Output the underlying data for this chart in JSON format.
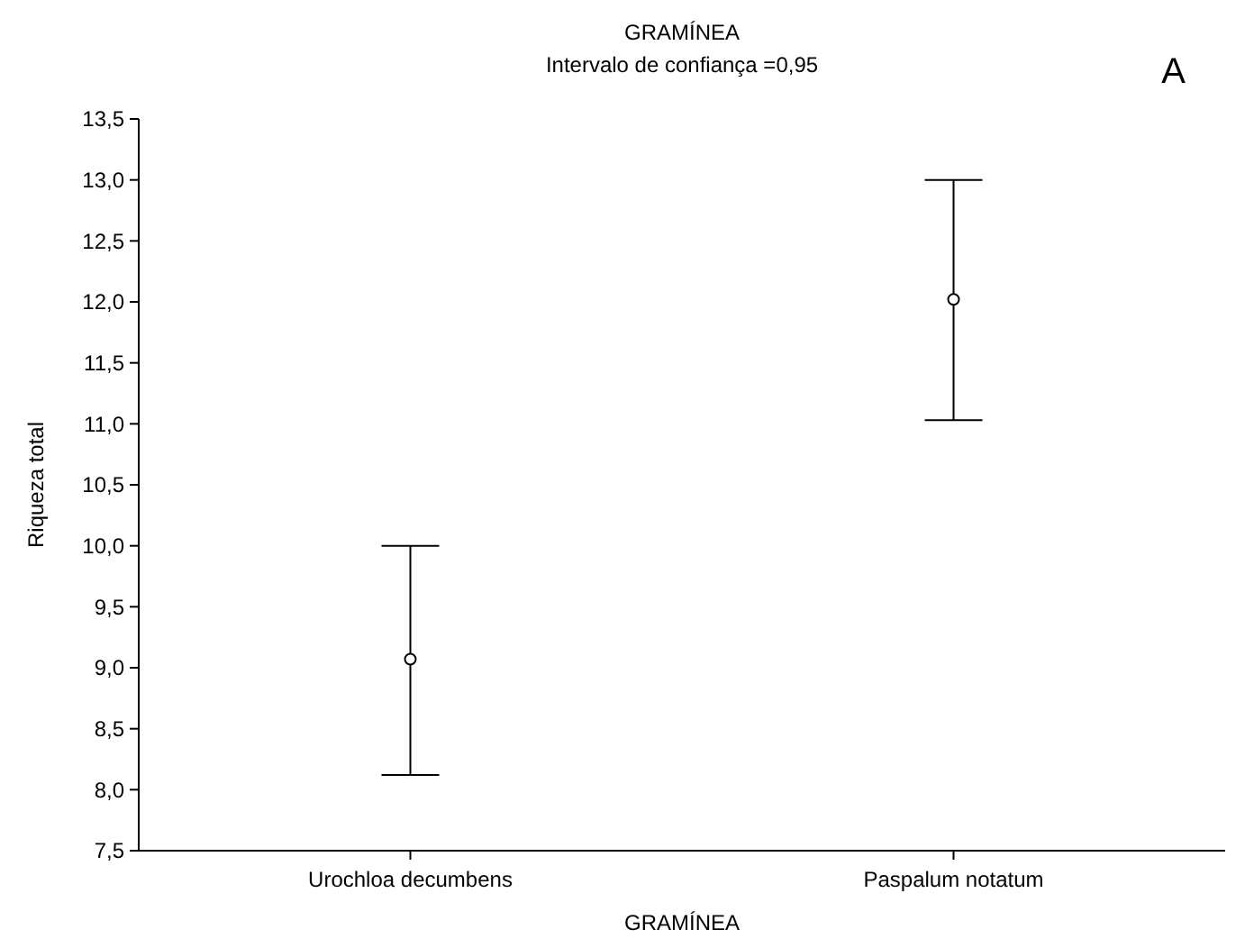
{
  "chart_data": {
    "type": "scatter",
    "title": "GRAMÍNEA",
    "subtitle": "Intervalo de confiança =0,95",
    "xlabel": "GRAMÍNEA",
    "ylabel": "Riqueza total",
    "categories": [
      "Urochloa decumbens",
      "Paspalum notatum"
    ],
    "series": [
      {
        "color": "#000000",
        "values": [
          9.07,
          12.02
        ],
        "errors": [
          [
            8.12,
            10.0
          ],
          [
            11.03,
            13.0
          ]
        ]
      }
    ],
    "ylim": [
      7.5,
      13.5
    ],
    "yticks": [
      {
        "value": 7.5,
        "label": "7,5"
      },
      {
        "value": 8,
        "label": "8,0"
      },
      {
        "value": 8.5,
        "label": "8,5"
      },
      {
        "value": 9,
        "label": "9,0"
      },
      {
        "value": 9.5,
        "label": "9,5"
      },
      {
        "value": 10,
        "label": "10,0"
      },
      {
        "value": 10.5,
        "label": "10,5"
      },
      {
        "value": 11,
        "label": "11,0"
      },
      {
        "value": 11.5,
        "label": "11,5"
      },
      {
        "value": 12,
        "label": "12,0"
      },
      {
        "value": 12.5,
        "label": "12,5"
      },
      {
        "value": 13,
        "label": "13,0"
      },
      {
        "value": 13.5,
        "label": "13,5"
      }
    ],
    "marker": "circle",
    "grid": false,
    "annotations": [
      "A"
    ]
  }
}
